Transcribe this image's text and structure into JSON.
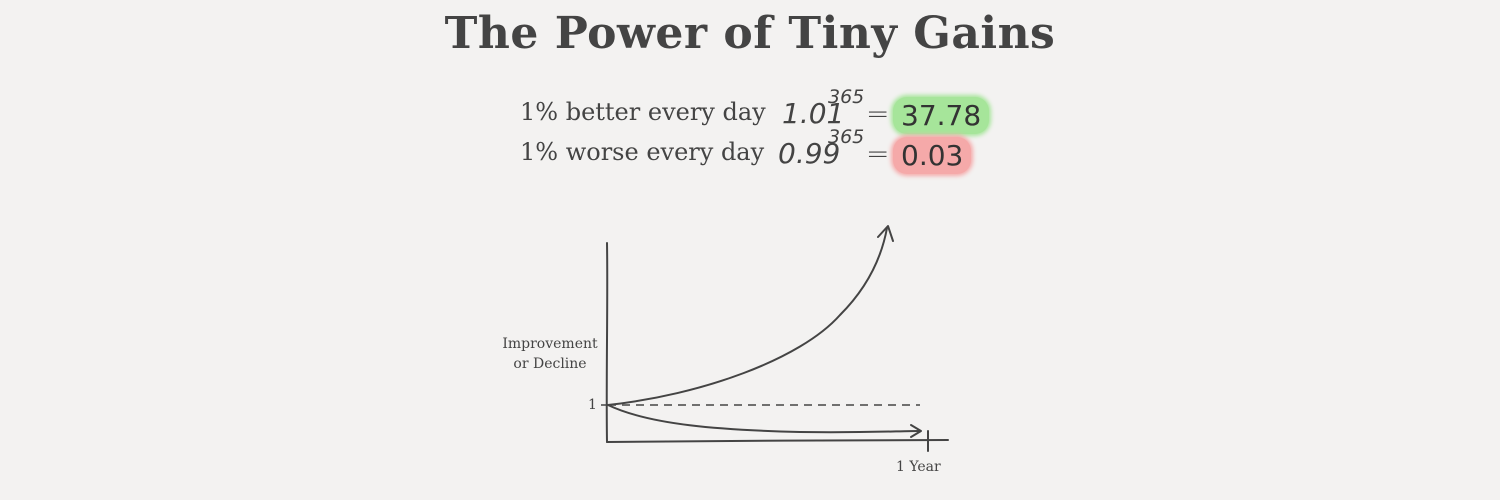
{
  "title": "The Power of Tiny Gains",
  "equations": [
    {
      "label": "1% better every day",
      "base": "1.01",
      "exponent": "365",
      "equals": "=",
      "result": "37.78",
      "highlight_color": "#a6e59a"
    },
    {
      "label": "1% worse every day",
      "base": "0.99",
      "exponent": "365",
      "equals": "=",
      "result": "0.03",
      "highlight_color": "#f5a9a9"
    }
  ],
  "diagram": {
    "y_axis_label_line1": "Improvement",
    "y_axis_label_line2": "or Decline",
    "baseline_label": "1",
    "x_end_label": "1 Year",
    "stroke_color": "#444444"
  }
}
